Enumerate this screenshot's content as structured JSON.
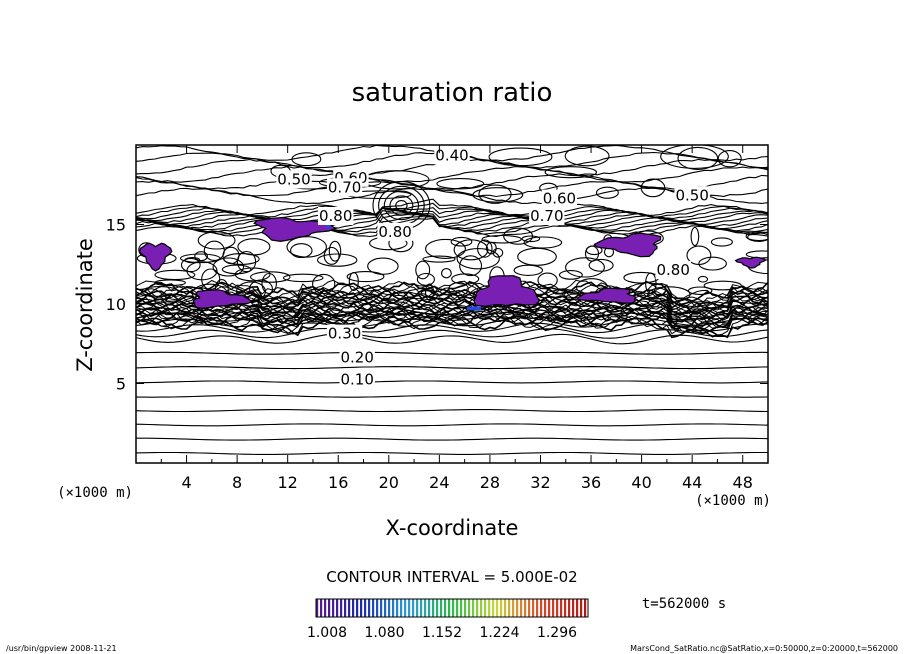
{
  "chart_data": {
    "type": "contour",
    "title": "saturation ratio",
    "xlabel": "X-coordinate",
    "ylabel": "Z-coordinate",
    "x_unit": "(×1000 m)",
    "y_unit": "(×1000 m)",
    "xlim": [
      0,
      50
    ],
    "ylim": [
      0,
      20
    ],
    "x_ticks": [
      4,
      8,
      12,
      16,
      20,
      24,
      28,
      32,
      36,
      40,
      44,
      48
    ],
    "y_ticks": [
      5,
      10,
      15
    ],
    "contour_interval_label": "CONTOUR INTERVAL = 5.000E-02",
    "contour_labels": [
      {
        "text": "0.40",
        "x": 25.0,
        "z": 19.4
      },
      {
        "text": "0.50",
        "x": 12.5,
        "z": 17.9
      },
      {
        "text": "0.60",
        "x": 17.0,
        "z": 18.0
      },
      {
        "text": "0.70",
        "x": 16.5,
        "z": 17.4
      },
      {
        "text": "0.60",
        "x": 33.5,
        "z": 16.7
      },
      {
        "text": "0.50",
        "x": 44.0,
        "z": 16.9
      },
      {
        "text": "0.70",
        "x": 32.5,
        "z": 15.6
      },
      {
        "text": "0.80",
        "x": 15.8,
        "z": 15.6
      },
      {
        "text": "0.80",
        "x": 20.5,
        "z": 14.6
      },
      {
        "text": "0.80",
        "x": 42.5,
        "z": 12.2
      },
      {
        "text": "0.30",
        "x": 16.5,
        "z": 8.2
      },
      {
        "text": "0.20",
        "x": 17.5,
        "z": 6.7
      },
      {
        "text": "0.10",
        "x": 17.5,
        "z": 5.3
      }
    ],
    "supersaturated_regions": [
      {
        "x": [
          0.3,
          2.8
        ],
        "z": [
          12.2,
          14.0
        ]
      },
      {
        "x": [
          9.0,
          15.5
        ],
        "z": [
          14.0,
          15.5
        ]
      },
      {
        "x": [
          4.0,
          9.0
        ],
        "z": [
          9.7,
          10.9
        ]
      },
      {
        "x": [
          26.5,
          32.0
        ],
        "z": [
          9.6,
          11.8
        ]
      },
      {
        "x": [
          35.0,
          40.0
        ],
        "z": [
          10.0,
          11.0
        ]
      },
      {
        "x": [
          36.5,
          42.0
        ],
        "z": [
          13.0,
          14.5
        ]
      },
      {
        "x": [
          47.5,
          49.8
        ],
        "z": [
          12.3,
          13.0
        ]
      }
    ],
    "colorbar": {
      "ticks": [
        "1.008",
        "1.080",
        "1.152",
        "1.224",
        "1.296"
      ],
      "colors": [
        "#5a1a8c",
        "#1a2aa8",
        "#2a9ad8",
        "#2ab84a",
        "#c8d83a",
        "#d84a2a",
        "#b01818"
      ]
    },
    "time_label": "t=562000 s",
    "footer_left": "/usr/bin/gpview   2008-11-21",
    "footer_right": "MarsCond_SatRatio.nc@SatRatio,x=0:50000,z=0:20000,t=562000",
    "region_color": "#7a1fb4",
    "region_edge_color": "#2a4ad8"
  }
}
